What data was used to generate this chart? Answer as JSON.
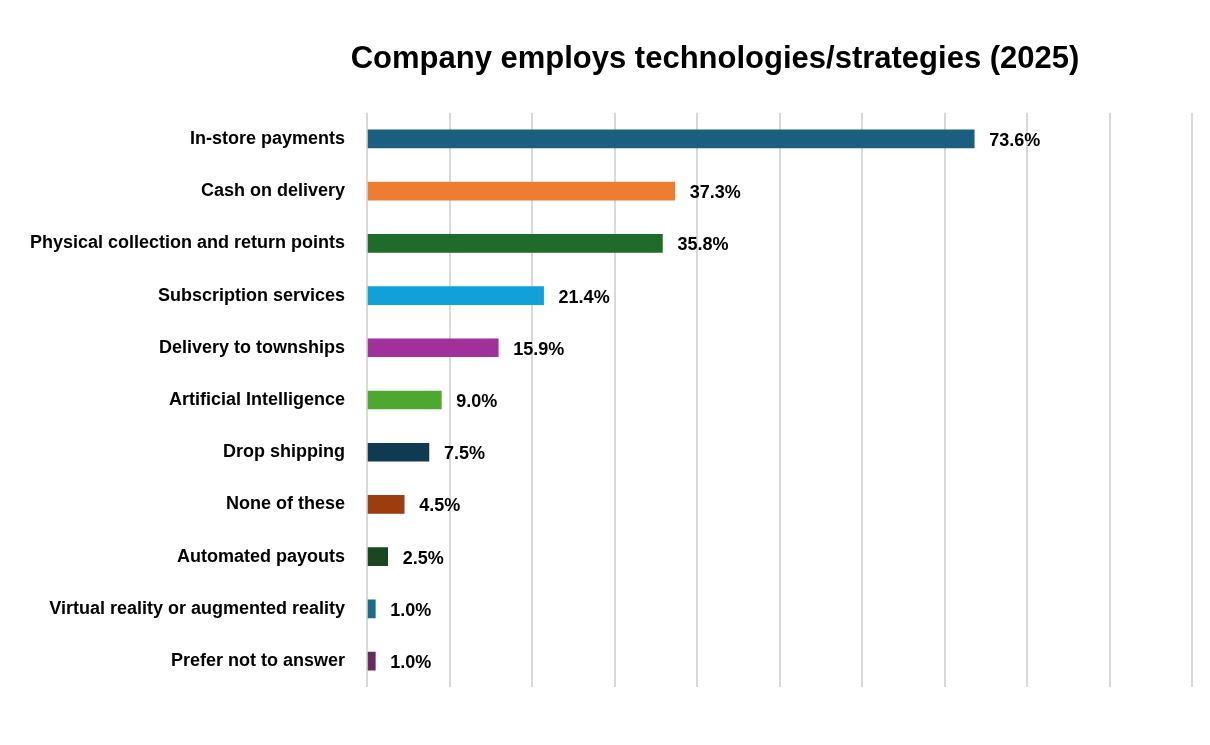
{
  "chart_data": {
    "type": "bar",
    "orientation": "horizontal",
    "title": "Company employs technologies/strategies (2025)",
    "categories": [
      "In-store payments",
      "Cash on delivery",
      "Physical collection and return points",
      "Subscription services",
      "Delivery to townships",
      "Artificial Intelligence",
      "Drop shipping",
      "None of these",
      "Automated payouts",
      "Virtual reality or augmented reality",
      "Prefer not to answer"
    ],
    "values": [
      73.6,
      37.3,
      35.8,
      21.4,
      15.9,
      9.0,
      7.5,
      4.5,
      2.5,
      1.0,
      1.0
    ],
    "value_labels": [
      "73.6%",
      "37.3%",
      "35.8%",
      "21.4%",
      "15.9%",
      "9.0%",
      "7.5%",
      "4.5%",
      "2.5%",
      "1.0%",
      "1.0%"
    ],
    "colors": [
      "#1b5e80",
      "#ed7d31",
      "#1e6b2a",
      "#12a0d8",
      "#a0319a",
      "#4ea72e",
      "#0e3a52",
      "#9c3d10",
      "#1b4720",
      "#1b6a8a",
      "#6b2a5e"
    ],
    "xlim": [
      0,
      100
    ],
    "xticks": [
      {
        "value": 0,
        "label": null
      },
      {
        "value": 10,
        "label": null
      },
      {
        "value": 20,
        "label": null
      },
      {
        "value": 30,
        "label": null
      },
      {
        "value": 40,
        "label": null
      },
      {
        "value": 50,
        "label": null
      },
      {
        "value": 60,
        "label": null
      },
      {
        "value": 70,
        "label": null
      },
      {
        "value": 80,
        "label": null
      },
      {
        "value": 90,
        "label": null
      },
      {
        "value": 100,
        "label": null
      }
    ],
    "grid": "x",
    "tick_labels": "y",
    "legend": false
  }
}
